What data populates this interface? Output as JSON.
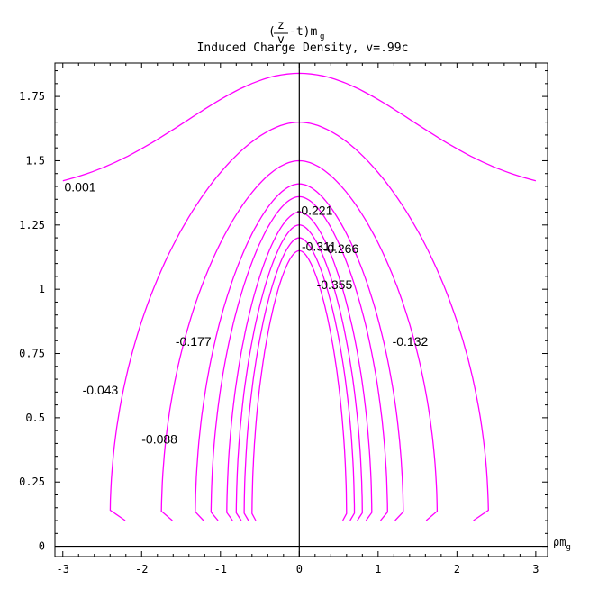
{
  "chart_data": {
    "type": "contour",
    "title_formula": "(z/v - t)m_g",
    "title": "Induced Charge Density, v=.99c",
    "xlabel": "ρm_g",
    "ylabel": "",
    "xlim": [
      -3.1,
      3.15
    ],
    "ylim": [
      -0.04,
      1.88
    ],
    "x_ticks": [
      -3,
      -2,
      -1,
      0,
      1,
      2,
      3
    ],
    "x_tick_labels": [
      "-3",
      "-2",
      "-1",
      "0",
      "1",
      "2",
      "3"
    ],
    "y_ticks": [
      0,
      0.25,
      0.5,
      0.75,
      1,
      1.25,
      1.5,
      1.75
    ],
    "y_tick_labels": [
      "0",
      "0.25",
      "0.5",
      "0.75",
      "1",
      "1.25",
      "1.5",
      "1.75"
    ],
    "grid": false,
    "line_color": "#ff00ff",
    "series": [
      {
        "name": "0.001",
        "top": 1.84,
        "halfwidth": 3.0,
        "bottom": 1.37,
        "open_sides": true
      },
      {
        "name": "-0.043",
        "top": 1.65,
        "halfwidth": 2.4,
        "bottom": 0.1
      },
      {
        "name": "-0.088",
        "top": 1.5,
        "halfwidth": 1.75,
        "bottom": 0.1
      },
      {
        "name": "-0.132",
        "top": 1.41,
        "halfwidth": 1.32,
        "bottom": 0.1
      },
      {
        "name": "-0.177",
        "top": 1.36,
        "halfwidth": 1.12,
        "bottom": 0.1
      },
      {
        "name": "-0.221",
        "top": 1.3,
        "halfwidth": 0.92,
        "bottom": 0.1
      },
      {
        "name": "-0.266",
        "top": 1.25,
        "halfwidth": 0.8,
        "bottom": 0.1
      },
      {
        "name": "-0.311",
        "top": 1.2,
        "halfwidth": 0.7,
        "bottom": 0.1
      },
      {
        "name": "-0.355",
        "top": 1.15,
        "halfwidth": 0.6,
        "bottom": 0.1
      }
    ],
    "contour_labels": [
      {
        "text": "0.001",
        "x": -2.98,
        "y": 1.38
      },
      {
        "text": "-0.221",
        "x": -0.03,
        "y": 1.29
      },
      {
        "text": "-0.311",
        "x": 0.03,
        "y": 1.15
      },
      {
        "text": "-0.266",
        "x": 0.3,
        "y": 1.14
      },
      {
        "text": "-0.355",
        "x": 0.22,
        "y": 1.0
      },
      {
        "text": "-0.177",
        "x": -1.57,
        "y": 0.78
      },
      {
        "text": "-0.132",
        "x": 1.18,
        "y": 0.78
      },
      {
        "text": "-0.043",
        "x": -2.75,
        "y": 0.59
      },
      {
        "text": "-0.088",
        "x": -2.0,
        "y": 0.4
      }
    ]
  }
}
